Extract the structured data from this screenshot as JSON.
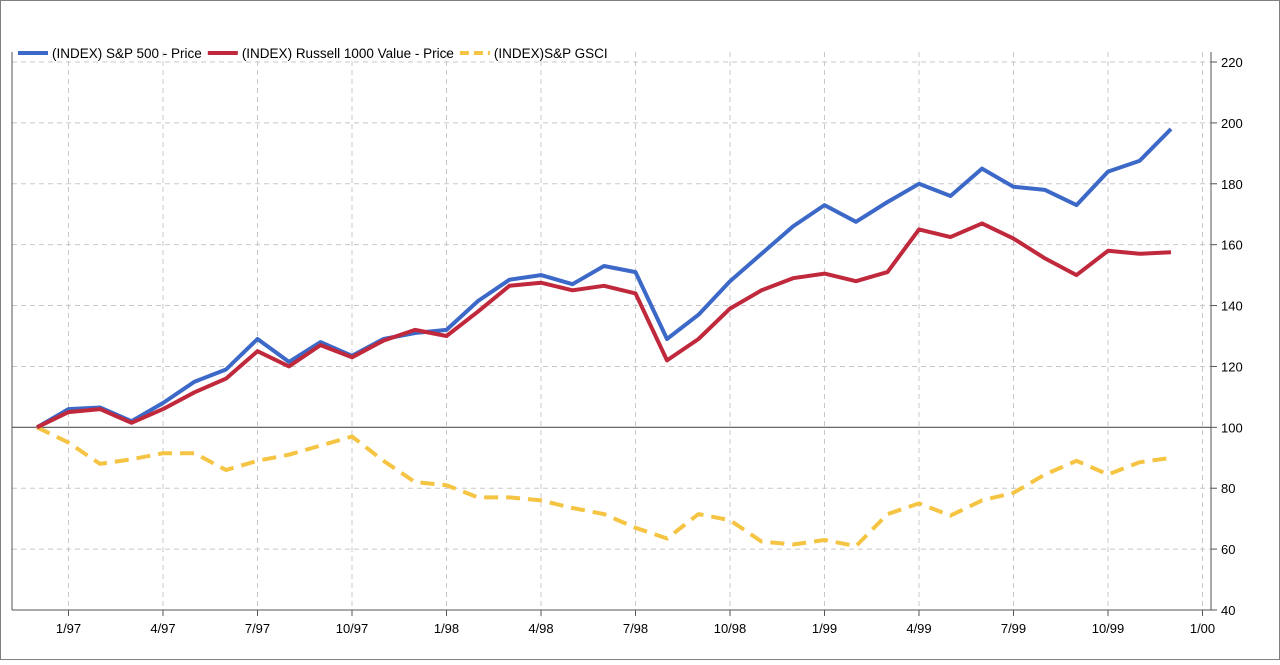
{
  "chart_data": {
    "type": "line",
    "x": [
      "12/96",
      "1/97",
      "2/97",
      "3/97",
      "4/97",
      "5/97",
      "6/97",
      "7/97",
      "8/97",
      "9/97",
      "10/97",
      "11/97",
      "12/97",
      "1/98",
      "2/98",
      "3/98",
      "4/98",
      "5/98",
      "6/98",
      "7/98",
      "8/98",
      "9/98",
      "10/98",
      "11/98",
      "12/98",
      "1/99",
      "2/99",
      "3/99",
      "4/99",
      "5/99",
      "6/99",
      "7/99",
      "8/99",
      "9/99",
      "10/99",
      "11/99",
      "12/99"
    ],
    "x_tick_labels": [
      "1/97",
      "4/97",
      "7/97",
      "10/97",
      "1/98",
      "4/98",
      "7/98",
      "10/98",
      "1/99",
      "4/99",
      "7/99",
      "10/99",
      "1/00"
    ],
    "y_ticks": [
      40,
      60,
      80,
      100,
      120,
      140,
      160,
      180,
      200,
      220
    ],
    "ylim": [
      40,
      220
    ],
    "baseline": 100,
    "grid": true,
    "legend_position": "top-left",
    "series": [
      {
        "name": "(INDEX) S&P 500 - Price",
        "color": "#3c68c8",
        "style": "solid",
        "values": [
          100,
          106,
          106.5,
          102,
          108,
          115,
          119,
          129,
          121.5,
          128,
          123.5,
          129,
          131,
          132,
          141.5,
          148.5,
          150,
          147,
          153,
          151,
          129,
          137,
          148,
          157,
          166,
          173,
          167.5,
          174,
          180,
          176,
          185,
          179,
          178,
          173,
          184,
          187.5,
          198
        ]
      },
      {
        "name": "(INDEX) Russell 1000 Value - Price",
        "color": "#c0283c",
        "style": "solid",
        "values": [
          100,
          105,
          106,
          101.5,
          106,
          111.5,
          116,
          125,
          120,
          127,
          123,
          128.5,
          132,
          130,
          138,
          146.5,
          147.5,
          145,
          146.5,
          144,
          122,
          129,
          139,
          145,
          149,
          150.5,
          148,
          151,
          165,
          162.5,
          167,
          162,
          155.5,
          150,
          158,
          157,
          157.5
        ]
      },
      {
        "name": "(INDEX)S&P GSCI",
        "color": "#f5c443",
        "style": "dashed",
        "values": [
          100,
          95,
          88,
          89.5,
          91.5,
          91.5,
          86,
          89,
          91,
          94,
          97,
          89,
          82,
          81,
          77,
          77,
          76,
          73.5,
          71.5,
          67,
          63.5,
          71.5,
          69.5,
          62.5,
          61.5,
          63,
          61,
          71.5,
          75,
          71,
          76,
          78.5,
          84.5,
          89,
          84.5,
          88.5,
          90
        ]
      }
    ]
  }
}
